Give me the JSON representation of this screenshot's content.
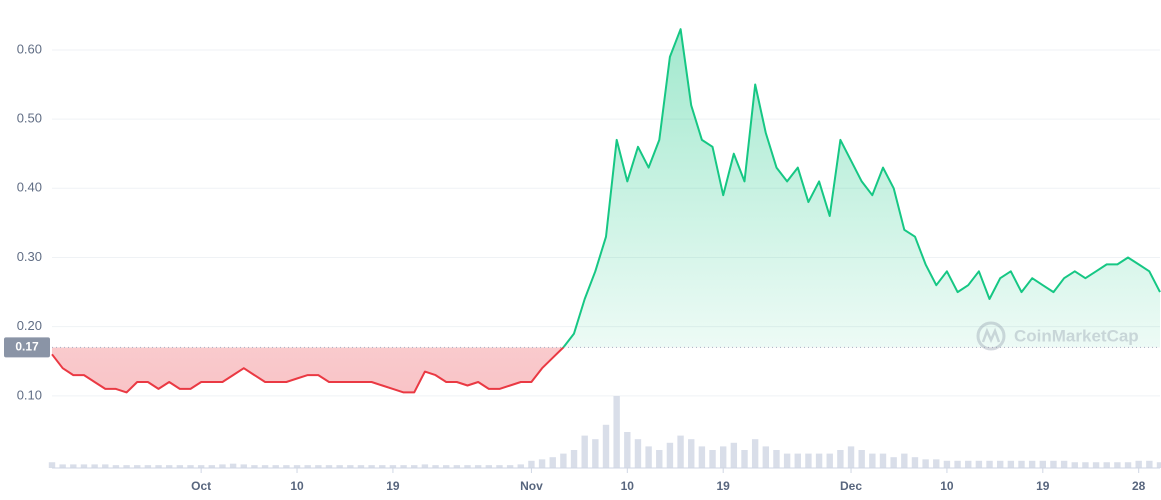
{
  "chart_data": {
    "type": "line",
    "watermark": "CoinMarketCap",
    "x": [
      "09-17",
      "09-18",
      "09-19",
      "09-20",
      "09-21",
      "09-22",
      "09-23",
      "09-24",
      "09-25",
      "09-26",
      "09-27",
      "09-28",
      "09-29",
      "09-30",
      "10-01",
      "10-02",
      "10-03",
      "10-04",
      "10-05",
      "10-06",
      "10-07",
      "10-08",
      "10-09",
      "10-10",
      "10-11",
      "10-12",
      "10-13",
      "10-14",
      "10-15",
      "10-16",
      "10-17",
      "10-18",
      "10-19",
      "10-20",
      "10-21",
      "10-22",
      "10-23",
      "10-24",
      "10-25",
      "10-26",
      "10-27",
      "10-28",
      "10-29",
      "10-30",
      "10-31",
      "11-01",
      "11-02",
      "11-03",
      "11-04",
      "11-05",
      "11-06",
      "11-07",
      "11-08",
      "11-09",
      "11-10",
      "11-11",
      "11-12",
      "11-13",
      "11-14",
      "11-15",
      "11-16",
      "11-17",
      "11-18",
      "11-19",
      "11-20",
      "11-21",
      "11-22",
      "11-23",
      "11-24",
      "11-25",
      "11-26",
      "11-27",
      "11-28",
      "11-29",
      "11-30",
      "12-01",
      "12-02",
      "12-03",
      "12-04",
      "12-05",
      "12-06",
      "12-07",
      "12-08",
      "12-09",
      "12-10",
      "12-11",
      "12-12",
      "12-13",
      "12-14",
      "12-15",
      "12-16",
      "12-17",
      "12-18",
      "12-19",
      "12-20",
      "12-21",
      "12-22",
      "12-23",
      "12-24",
      "12-25",
      "12-26",
      "12-27",
      "12-28",
      "12-29",
      "12-30"
    ],
    "values": [
      0.16,
      0.14,
      0.13,
      0.13,
      0.12,
      0.11,
      0.11,
      0.105,
      0.12,
      0.12,
      0.11,
      0.12,
      0.11,
      0.11,
      0.12,
      0.12,
      0.12,
      0.13,
      0.14,
      0.13,
      0.12,
      0.12,
      0.12,
      0.125,
      0.13,
      0.13,
      0.12,
      0.12,
      0.12,
      0.12,
      0.12,
      0.115,
      0.11,
      0.105,
      0.105,
      0.135,
      0.13,
      0.12,
      0.12,
      0.115,
      0.12,
      0.11,
      0.11,
      0.115,
      0.12,
      0.12,
      0.14,
      0.155,
      0.17,
      0.19,
      0.24,
      0.28,
      0.33,
      0.47,
      0.41,
      0.46,
      0.43,
      0.47,
      0.59,
      0.63,
      0.52,
      0.47,
      0.46,
      0.39,
      0.45,
      0.41,
      0.55,
      0.48,
      0.43,
      0.41,
      0.43,
      0.38,
      0.41,
      0.36,
      0.47,
      0.44,
      0.41,
      0.39,
      0.43,
      0.4,
      0.34,
      0.33,
      0.29,
      0.26,
      0.28,
      0.25,
      0.26,
      0.28,
      0.24,
      0.27,
      0.28,
      0.25,
      0.27,
      0.26,
      0.25,
      0.27,
      0.28,
      0.27,
      0.28,
      0.29,
      0.29,
      0.3,
      0.29,
      0.28,
      0.25
    ],
    "volume": [
      8,
      5,
      5,
      5,
      5,
      5,
      4,
      4,
      4,
      4,
      4,
      4,
      4,
      4,
      4,
      4,
      5,
      6,
      5,
      4,
      4,
      4,
      4,
      4,
      4,
      4,
      4,
      4,
      4,
      4,
      4,
      4,
      4,
      4,
      4,
      5,
      4,
      4,
      4,
      4,
      4,
      4,
      4,
      4,
      5,
      10,
      12,
      15,
      20,
      25,
      45,
      40,
      60,
      100,
      50,
      40,
      30,
      25,
      35,
      45,
      40,
      30,
      25,
      30,
      35,
      25,
      40,
      30,
      25,
      20,
      20,
      20,
      20,
      20,
      25,
      30,
      25,
      20,
      20,
      15,
      20,
      15,
      12,
      12,
      10,
      10,
      10,
      10,
      10,
      10,
      10,
      10,
      10,
      10,
      10,
      10,
      8,
      8,
      8,
      8,
      8,
      8,
      10,
      10,
      8
    ],
    "y2lim": [
      0,
      100
    ],
    "baseline": 0.17,
    "up_color": "#16c784",
    "down_color": "#ea3943",
    "xlim": [
      "09-17",
      "12-30"
    ],
    "xticks": [
      {
        "value": "10-01",
        "label": "Oct"
      },
      {
        "value": "10-10",
        "label": "10"
      },
      {
        "value": "10-19",
        "label": "19"
      },
      {
        "value": "11-01",
        "label": "Nov"
      },
      {
        "value": "11-10",
        "label": "10"
      },
      {
        "value": "11-19",
        "label": "19"
      },
      {
        "value": "12-01",
        "label": "Dec"
      },
      {
        "value": "12-10",
        "label": "10"
      },
      {
        "value": "12-19",
        "label": "19"
      },
      {
        "value": "12-28",
        "label": "28"
      }
    ],
    "ylim": [
      0,
      0.665
    ],
    "yticks": [
      {
        "value": 0.1,
        "label": "0.10"
      },
      {
        "value": 0.2,
        "label": "0.20"
      },
      {
        "value": 0.3,
        "label": "0.30"
      },
      {
        "value": 0.4,
        "label": "0.40"
      },
      {
        "value": 0.5,
        "label": "0.50"
      },
      {
        "value": 0.6,
        "label": "0.60"
      }
    ],
    "grid": true
  }
}
